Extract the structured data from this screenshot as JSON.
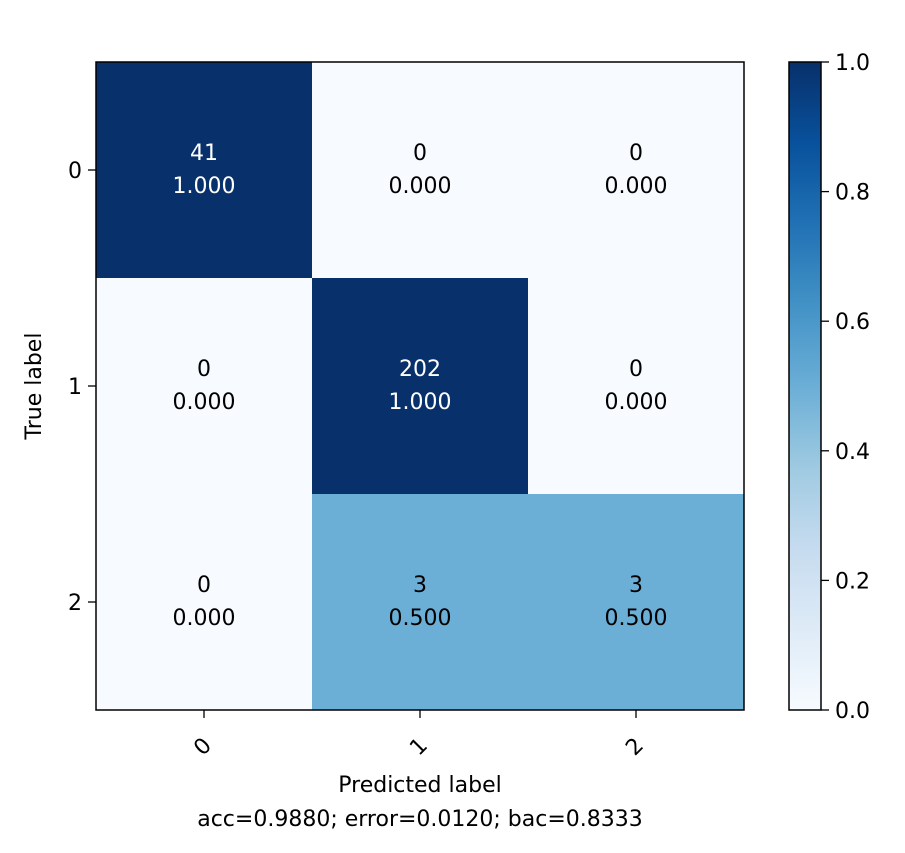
{
  "chart_data": {
    "type": "heatmap",
    "x_categories": [
      "0",
      "1",
      "2"
    ],
    "y_categories": [
      "0",
      "1",
      "2"
    ],
    "xlabel": "Predicted label",
    "ylabel": "True label",
    "summary": "acc=0.9880; error=0.0120; bac=0.8333",
    "counts": [
      [
        41,
        0,
        0
      ],
      [
        0,
        202,
        0
      ],
      [
        0,
        3,
        3
      ]
    ],
    "normalized": [
      [
        1.0,
        0.0,
        0.0
      ],
      [
        0.0,
        1.0,
        0.0
      ],
      [
        0.0,
        0.5,
        0.5
      ]
    ],
    "normalized_labels": [
      [
        "1.000",
        "0.000",
        "0.000"
      ],
      [
        "0.000",
        "1.000",
        "0.000"
      ],
      [
        "0.000",
        "0.500",
        "0.500"
      ]
    ],
    "colorbar": {
      "min": 0.0,
      "max": 1.0,
      "ticks": [
        "0.0",
        "0.2",
        "0.4",
        "0.6",
        "0.8",
        "1.0"
      ],
      "colormap": "Blues"
    },
    "x_tick_rotation": 45,
    "colors": {
      "low": "#f7fbff",
      "mid": "#6baed6",
      "high": "#08306b"
    }
  }
}
